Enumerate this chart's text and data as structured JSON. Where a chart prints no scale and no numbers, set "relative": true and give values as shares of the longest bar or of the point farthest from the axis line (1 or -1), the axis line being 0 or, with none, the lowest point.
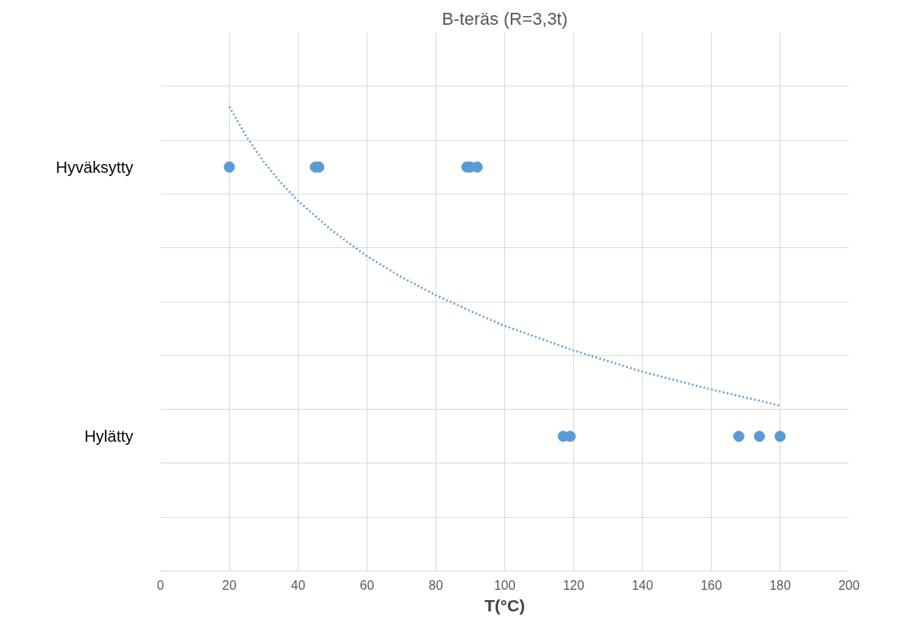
{
  "chart_data": {
    "type": "scatter",
    "title": "B-teräs (R=3,3t)",
    "xlabel": "T(°C)",
    "relative": true,
    "xlim": [
      0,
      200
    ],
    "xticks": [
      0,
      20,
      40,
      60,
      80,
      100,
      120,
      140,
      160,
      180,
      200
    ],
    "grid": true,
    "marker": "circle",
    "annotations": [
      "Hyväksytty",
      "Hylätty"
    ],
    "series": [
      {
        "color": "#5b9bd5",
        "x": [
          20,
          45,
          46,
          89,
          90,
          92
        ],
        "values": [
          0.87,
          0.87,
          0.87,
          0.87,
          0.87,
          0.87
        ]
      },
      {
        "color": "#5b9bd5",
        "x": [
          117,
          119,
          168,
          174,
          180
        ],
        "values": [
          0.29,
          0.29,
          0.29,
          0.29,
          0.29
        ]
      },
      {
        "type": "line",
        "color": "#5b9bd5",
        "line_style": "dotted",
        "marker": "none",
        "x": [
          20,
          25,
          30,
          35,
          40,
          50,
          60,
          70,
          80,
          90,
          100,
          120,
          140,
          160,
          180
        ],
        "values": [
          1,
          0.935,
          0.881,
          0.836,
          0.797,
          0.732,
          0.678,
          0.633,
          0.594,
          0.56,
          0.528,
          0.475,
          0.429,
          0.391,
          0.356
        ]
      }
    ]
  }
}
